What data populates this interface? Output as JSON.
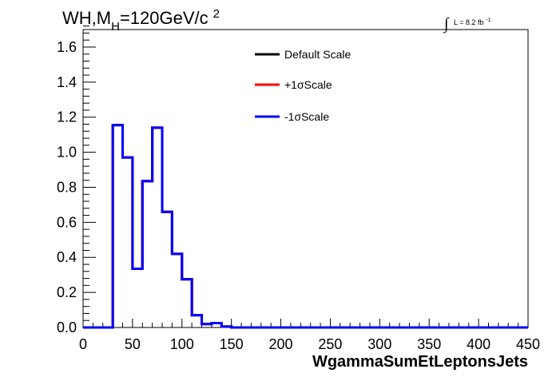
{
  "header": {
    "title_main": "WH,M",
    "title_sub": "H",
    "title_rest": "=120GeV/c",
    "title_sup": "2",
    "lumi_integral": "∫",
    "lumi_text": "L = 8.2 fb",
    "lumi_sup": "-1"
  },
  "legend": {
    "entries": [
      {
        "label": "Default Scale",
        "color": "#000000"
      },
      {
        "label": "+1σScale",
        "color": "#ff0000"
      },
      {
        "label": "-1σScale",
        "color": "#0000ff"
      }
    ]
  },
  "chart_data": {
    "type": "line",
    "title": "WH,M_H=120GeV/c^2",
    "xlabel": "WgammaSumEtLeptonsJets",
    "ylabel": "",
    "xlim": [
      0,
      450
    ],
    "ylim": [
      0,
      1.7
    ],
    "xticks": [
      0,
      50,
      100,
      150,
      200,
      250,
      300,
      350,
      400,
      450
    ],
    "yticks": [
      0.0,
      0.2,
      0.4,
      0.6,
      0.8,
      1.0,
      1.2,
      1.4,
      1.6
    ],
    "ytick_labels": [
      "0.0",
      "0.2",
      "0.4",
      "0.6",
      "0.8",
      "1.0",
      "1.2",
      "1.4",
      "1.6"
    ],
    "bin_width": 10,
    "bin_edges_start": 0,
    "series": [
      {
        "name": "Default Scale",
        "color": "#000000",
        "values": [
          0,
          0,
          0,
          1.155,
          0.97,
          0.335,
          0.835,
          1.14,
          0.66,
          0.42,
          0.275,
          0.07,
          0.02,
          0.025,
          0.005,
          0,
          0,
          0,
          0,
          0,
          0,
          0,
          0,
          0,
          0,
          0,
          0,
          0,
          0,
          0,
          0,
          0,
          0,
          0,
          0,
          0,
          0,
          0,
          0,
          0,
          0,
          0,
          0,
          0,
          0
        ]
      },
      {
        "name": "+1σScale",
        "color": "#ff0000",
        "values": [
          0,
          0,
          0,
          1.155,
          0.97,
          0.335,
          0.835,
          1.14,
          0.66,
          0.42,
          0.275,
          0.07,
          0.02,
          0.025,
          0.005,
          0,
          0,
          0,
          0,
          0,
          0,
          0,
          0,
          0,
          0,
          0,
          0,
          0,
          0,
          0,
          0,
          0,
          0,
          0,
          0,
          0,
          0,
          0,
          0,
          0,
          0,
          0,
          0,
          0,
          0
        ]
      },
      {
        "name": "-1σScale",
        "color": "#0000ff",
        "values": [
          0,
          0,
          0,
          1.155,
          0.97,
          0.335,
          0.835,
          1.14,
          0.66,
          0.42,
          0.275,
          0.07,
          0.02,
          0.025,
          0.005,
          0,
          0,
          0,
          0,
          0,
          0,
          0,
          0,
          0,
          0,
          0,
          0,
          0,
          0,
          0,
          0,
          0,
          0,
          0,
          0,
          0,
          0,
          0,
          0,
          0,
          0,
          0,
          0,
          0,
          0
        ]
      }
    ],
    "grid": false,
    "legend_position": "top-center"
  }
}
